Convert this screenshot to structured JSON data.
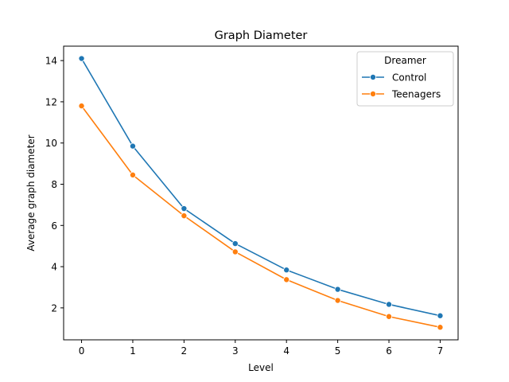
{
  "chart_data": {
    "type": "line",
    "title": "Graph Diameter",
    "xlabel": "Level",
    "ylabel": "Average graph diameter",
    "x": [
      0,
      1,
      2,
      3,
      4,
      5,
      6,
      7
    ],
    "xticks": [
      "0",
      "1",
      "2",
      "3",
      "4",
      "5",
      "6",
      "7"
    ],
    "yticks": [
      "2",
      "4",
      "6",
      "8",
      "10",
      "12",
      "14"
    ],
    "xlim": [
      -0.35,
      7.35
    ],
    "ylim": [
      0.45,
      14.7
    ],
    "grid": false,
    "legend": {
      "title": "Dreamer",
      "placement": "top-right"
    },
    "series": [
      {
        "name": "Control",
        "color": "#1f77b4",
        "marker": "circle",
        "values": [
          14.1,
          9.85,
          6.82,
          5.12,
          3.84,
          2.9,
          2.17,
          1.62
        ]
      },
      {
        "name": "Teenagers",
        "color": "#ff7f0e",
        "marker": "circle",
        "values": [
          11.8,
          8.45,
          6.47,
          4.72,
          3.37,
          2.36,
          1.58,
          1.06
        ]
      }
    ]
  }
}
